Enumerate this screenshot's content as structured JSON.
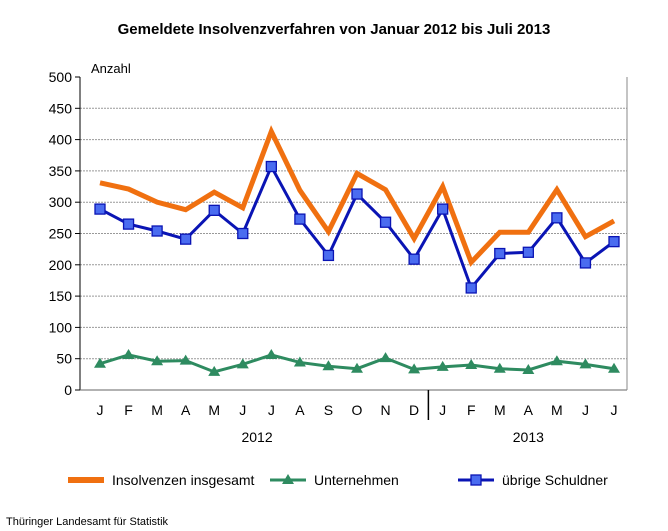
{
  "chart_data": {
    "type": "line",
    "title": "Gemeldete Insolvenzverfahren von Januar 2012 bis Juli 2013",
    "ylabel": "Anzahl",
    "ylim": [
      0,
      500
    ],
    "yticks": [
      0,
      50,
      100,
      150,
      200,
      250,
      300,
      350,
      400,
      450,
      500
    ],
    "categories": [
      "J",
      "F",
      "M",
      "A",
      "M",
      "J",
      "J",
      "A",
      "S",
      "O",
      "N",
      "D",
      "J",
      "F",
      "M",
      "A",
      "M",
      "J",
      "J"
    ],
    "years": [
      {
        "label": "2012",
        "months": 12
      },
      {
        "label": "2013",
        "months": 7
      }
    ],
    "grid": true,
    "legend_position": "bottom",
    "series": [
      {
        "name": "Insolvenzen insgesamt",
        "color": "#f07010",
        "marker": "none",
        "values": [
          331,
          321,
          300,
          288,
          316,
          291,
          413,
          319,
          253,
          346,
          320,
          242,
          325,
          204,
          252,
          252,
          320,
          245,
          270
        ]
      },
      {
        "name": "Unternehmen",
        "color": "#2e8b60",
        "marker": "triangle",
        "values": [
          42,
          56,
          46,
          47,
          29,
          41,
          56,
          44,
          38,
          34,
          51,
          33,
          37,
          40,
          34,
          32,
          46,
          41,
          34
        ]
      },
      {
        "name": "übrige Schuldner",
        "color": "#0a14b4",
        "marker": "square",
        "values": [
          289,
          265,
          254,
          241,
          287,
          250,
          357,
          273,
          215,
          313,
          268,
          209,
          289,
          163,
          218,
          220,
          275,
          203,
          237
        ]
      }
    ],
    "source": "Thüringer Landesamt für Statistik"
  }
}
